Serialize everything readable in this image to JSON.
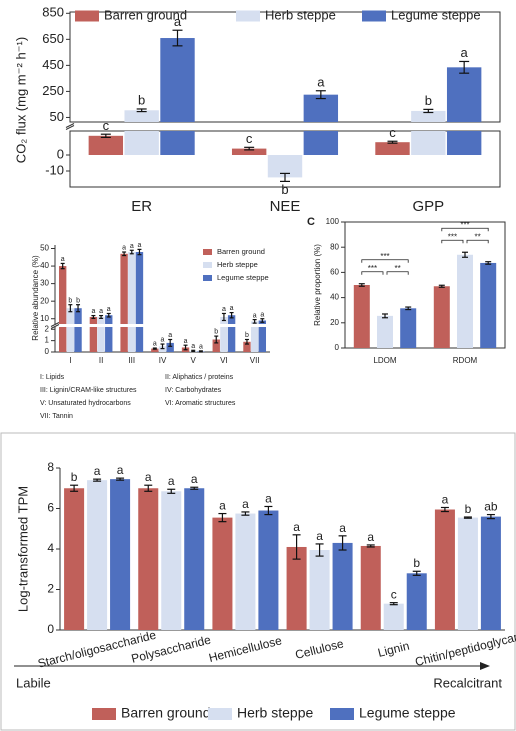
{
  "chart_data": [
    {
      "type": "bar",
      "ylabel": "CO₂ flux (mg m⁻² h⁻¹)",
      "categories": [
        "ER",
        "NEE",
        "GPP"
      ],
      "segments": [
        {
          "ylim": [
            -20,
            15
          ],
          "yticks": [
            -10,
            0
          ]
        },
        {
          "ylim": [
            15,
            860
          ],
          "yticks": [
            50,
            250,
            450,
            650,
            850
          ]
        }
      ],
      "series": [
        {
          "name": "Barren ground",
          "color": "#c0605a",
          "values": [
            12,
            4,
            8
          ],
          "errors": [
            1,
            0.8,
            0.6
          ],
          "letters": [
            "c",
            "c",
            "c"
          ]
        },
        {
          "name": "Herb steppe",
          "color": "#d6dff0",
          "values": [
            105,
            -14,
            100
          ],
          "errors": [
            10,
            2.5,
            12
          ],
          "letters": [
            "b",
            "b",
            "b"
          ]
        },
        {
          "name": "Legume steppe",
          "color": "#4f70bf",
          "values": [
            660,
            225,
            435
          ],
          "errors": [
            60,
            30,
            45
          ],
          "letters": [
            "a",
            "a",
            "a"
          ]
        }
      ]
    },
    {
      "type": "bar",
      "ylabel": "Relative abundance (%)",
      "categories": [
        "I",
        "II",
        "III",
        "IV",
        "V",
        "VI",
        "VII"
      ],
      "segments": [
        {
          "ylim": [
            0,
            2.2
          ],
          "yticks": [
            0,
            1,
            2
          ]
        },
        {
          "ylim": [
            7,
            52
          ],
          "yticks": [
            10,
            20,
            30,
            40,
            50
          ]
        }
      ],
      "series": [
        {
          "name": "Barren ground",
          "color": "#c0605a",
          "values": [
            40,
            11,
            47,
            0.3,
            0.4,
            1.1,
            0.9
          ],
          "errors": [
            1.5,
            0.8,
            1,
            0.05,
            0.2,
            0.3,
            0.2
          ],
          "letters": [
            "a",
            "a",
            "a",
            "a",
            "a",
            "b",
            "b"
          ]
        },
        {
          "name": "Herb steppe",
          "color": "#d6dff0",
          "values": [
            16,
            11,
            48,
            0.5,
            0.1,
            11,
            8.5
          ],
          "errors": [
            2,
            0.8,
            1,
            0.2,
            0.05,
            2,
            1
          ],
          "letters": [
            "b",
            "a",
            "a",
            "a",
            "a",
            "a",
            "a"
          ]
        },
        {
          "name": "Legume steppe",
          "color": "#4f70bf",
          "values": [
            16,
            12,
            48,
            0.8,
            0.05,
            12,
            9
          ],
          "errors": [
            2,
            1,
            1.5,
            0.3,
            0.05,
            1.5,
            1
          ],
          "letters": [
            "b",
            "a",
            "a",
            "a",
            "a",
            "a",
            "a"
          ]
        }
      ],
      "notes": [
        "I: Lipids",
        "II: Aliphatics / proteins",
        "III: Lignin/CRAM-like structures",
        "IV: Carbohydrates",
        "V: Unsaturated hydrocarbons",
        "VI: Aromatic structures",
        "VII: Tannin"
      ]
    },
    {
      "type": "bar",
      "panel_label": "C",
      "ylabel": "Relative proportion (%)",
      "categories": [
        "LDOM",
        "RDOM"
      ],
      "ylim": [
        0,
        100
      ],
      "yticks": [
        0,
        20,
        40,
        60,
        80,
        100
      ],
      "series": [
        {
          "color": "#c0605a",
          "values": [
            50,
            49
          ],
          "errors": [
            1,
            0.8
          ]
        },
        {
          "color": "#d6dff0",
          "values": [
            25.5,
            74
          ],
          "errors": [
            1.5,
            2
          ]
        },
        {
          "color": "#4f70bf",
          "values": [
            31.5,
            67.5
          ],
          "errors": [
            1,
            1
          ]
        }
      ],
      "brackets": [
        [
          "***",
          "**",
          "***"
        ],
        [
          "***",
          "**",
          "***"
        ]
      ]
    },
    {
      "type": "bar",
      "ylabel": "Log-transformed TPM",
      "categories": [
        "Starch/oligosaccharide",
        "Polysaccharide",
        "Hemicellulose",
        "Cellulose",
        "Lignin",
        "Chitin/peptidoglycan"
      ],
      "ylim": [
        0,
        8
      ],
      "yticks": [
        0,
        2,
        4,
        6,
        8
      ],
      "series": [
        {
          "name": "Barren ground",
          "color": "#c0605a",
          "values": [
            7.0,
            7.0,
            5.55,
            4.1,
            4.15,
            5.95
          ],
          "errors": [
            0.15,
            0.15,
            0.2,
            0.6,
            0.05,
            0.1
          ],
          "letters": [
            "b",
            "a",
            "a",
            "a",
            "a",
            "a"
          ]
        },
        {
          "name": "Herb steppe",
          "color": "#d6dff0",
          "values": [
            7.4,
            6.85,
            5.75,
            3.95,
            1.3,
            5.55
          ],
          "errors": [
            0.05,
            0.1,
            0.08,
            0.3,
            0.05,
            0.03
          ],
          "letters": [
            "a",
            "a",
            "a",
            "a",
            "c",
            "b"
          ]
        },
        {
          "name": "Legume steppe",
          "color": "#4f70bf",
          "values": [
            7.45,
            7.0,
            5.9,
            4.3,
            2.8,
            5.6
          ],
          "errors": [
            0.05,
            0.05,
            0.2,
            0.35,
            0.1,
            0.1
          ],
          "letters": [
            "a",
            "a",
            "a",
            "a",
            "b",
            "ab"
          ]
        }
      ],
      "annotations": [
        "Labile",
        "Recalcitrant"
      ]
    }
  ]
}
